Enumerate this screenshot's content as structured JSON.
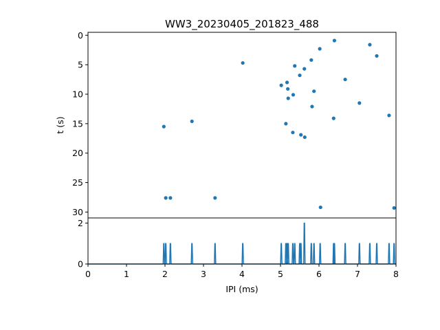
{
  "chart_data": [
    {
      "type": "scatter",
      "title": "WW3_20230405_201823_488",
      "xlabel": "",
      "ylabel": "t (s)",
      "xlim": [
        0,
        8
      ],
      "ylim": [
        31,
        -0.5
      ],
      "y_inverted": true,
      "yticks": [
        0,
        5,
        10,
        15,
        20,
        25,
        30
      ],
      "color": "#1f77b4",
      "points": [
        {
          "x": 6.4,
          "y": 0.9
        },
        {
          "x": 7.32,
          "y": 1.6
        },
        {
          "x": 6.02,
          "y": 2.3
        },
        {
          "x": 7.5,
          "y": 3.5
        },
        {
          "x": 5.8,
          "y": 4.2
        },
        {
          "x": 4.02,
          "y": 4.7
        },
        {
          "x": 5.37,
          "y": 5.2
        },
        {
          "x": 5.62,
          "y": 5.7
        },
        {
          "x": 5.5,
          "y": 6.8
        },
        {
          "x": 6.68,
          "y": 7.5
        },
        {
          "x": 5.17,
          "y": 8.0
        },
        {
          "x": 5.02,
          "y": 8.5
        },
        {
          "x": 5.19,
          "y": 9.1
        },
        {
          "x": 5.87,
          "y": 9.5
        },
        {
          "x": 5.33,
          "y": 10.1
        },
        {
          "x": 5.2,
          "y": 10.7
        },
        {
          "x": 7.05,
          "y": 11.5
        },
        {
          "x": 5.82,
          "y": 12.1
        },
        {
          "x": 7.82,
          "y": 13.6
        },
        {
          "x": 6.38,
          "y": 14.1
        },
        {
          "x": 2.7,
          "y": 14.6
        },
        {
          "x": 5.14,
          "y": 15.0
        },
        {
          "x": 1.97,
          "y": 15.5
        },
        {
          "x": 5.32,
          "y": 16.5
        },
        {
          "x": 5.53,
          "y": 16.9
        },
        {
          "x": 5.63,
          "y": 17.3
        },
        {
          "x": 2.02,
          "y": 27.6
        },
        {
          "x": 2.14,
          "y": 27.6
        },
        {
          "x": 3.3,
          "y": 27.6
        },
        {
          "x": 6.04,
          "y": 29.2
        },
        {
          "x": 7.95,
          "y": 29.3
        }
      ]
    },
    {
      "type": "line",
      "xlabel": "IPI (ms)",
      "ylabel": "",
      "xlim": [
        0,
        8
      ],
      "ylim": [
        0,
        2.25
      ],
      "xticks": [
        0,
        1,
        2,
        3,
        4,
        5,
        6,
        7,
        8
      ],
      "yticks": [
        0,
        2
      ],
      "color": "#1f77b4",
      "spike_width": 0.035,
      "spikes": [
        {
          "x": 1.97,
          "count": 1
        },
        {
          "x": 2.02,
          "count": 1
        },
        {
          "x": 2.14,
          "count": 1
        },
        {
          "x": 2.7,
          "count": 1
        },
        {
          "x": 3.3,
          "count": 1
        },
        {
          "x": 4.02,
          "count": 1
        },
        {
          "x": 5.02,
          "count": 1
        },
        {
          "x": 5.14,
          "count": 1
        },
        {
          "x": 5.17,
          "count": 1
        },
        {
          "x": 5.2,
          "count": 1
        },
        {
          "x": 5.32,
          "count": 1
        },
        {
          "x": 5.37,
          "count": 1
        },
        {
          "x": 5.5,
          "count": 1
        },
        {
          "x": 5.53,
          "count": 1
        },
        {
          "x": 5.62,
          "count": 2
        },
        {
          "x": 5.8,
          "count": 1
        },
        {
          "x": 5.87,
          "count": 1
        },
        {
          "x": 6.03,
          "count": 1
        },
        {
          "x": 6.38,
          "count": 1
        },
        {
          "x": 6.4,
          "count": 1
        },
        {
          "x": 6.68,
          "count": 1
        },
        {
          "x": 7.05,
          "count": 1
        },
        {
          "x": 7.32,
          "count": 1
        },
        {
          "x": 7.5,
          "count": 1
        },
        {
          "x": 7.82,
          "count": 1
        },
        {
          "x": 7.95,
          "count": 1
        }
      ]
    }
  ]
}
